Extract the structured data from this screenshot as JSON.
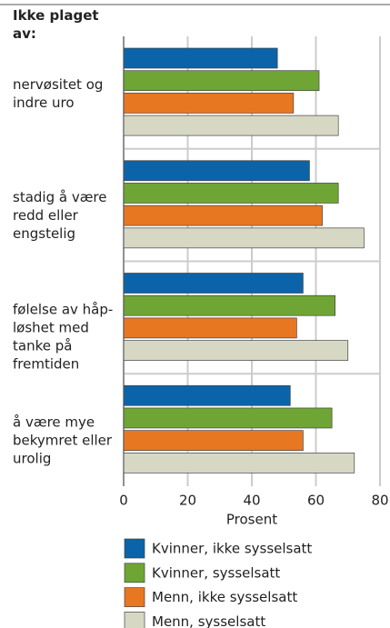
{
  "chart_data": {
    "type": "bar",
    "orientation": "horizontal",
    "title": "Ikke plaget\nav:",
    "categories": [
      "nervøsitet og\nindre uro",
      "stadig å være\nredd eller\nengstelig",
      "følelse av håp-\nløshet med\ntanke på\nfremtiden",
      "å være mye\nbekymret eller\nurolig"
    ],
    "series": [
      {
        "name": "Kvinner, ikke sysselsatt",
        "color": "#0b64a9",
        "values": [
          48,
          58,
          56,
          52
        ]
      },
      {
        "name": "Kvinner, sysselsatt",
        "color": "#6fa535",
        "values": [
          61,
          67,
          66,
          65
        ]
      },
      {
        "name": "Menn, ikke sysselsatt",
        "color": "#e87722",
        "values": [
          53,
          62,
          54,
          56
        ]
      },
      {
        "name": "Menn, sysselsatt",
        "color": "#d7d8c4",
        "values": [
          67,
          75,
          70,
          72
        ]
      }
    ],
    "xlabel": "Prosent",
    "xlim": [
      0,
      80
    ],
    "xticks": [
      0,
      20,
      40,
      60,
      80
    ],
    "grid": true
  }
}
